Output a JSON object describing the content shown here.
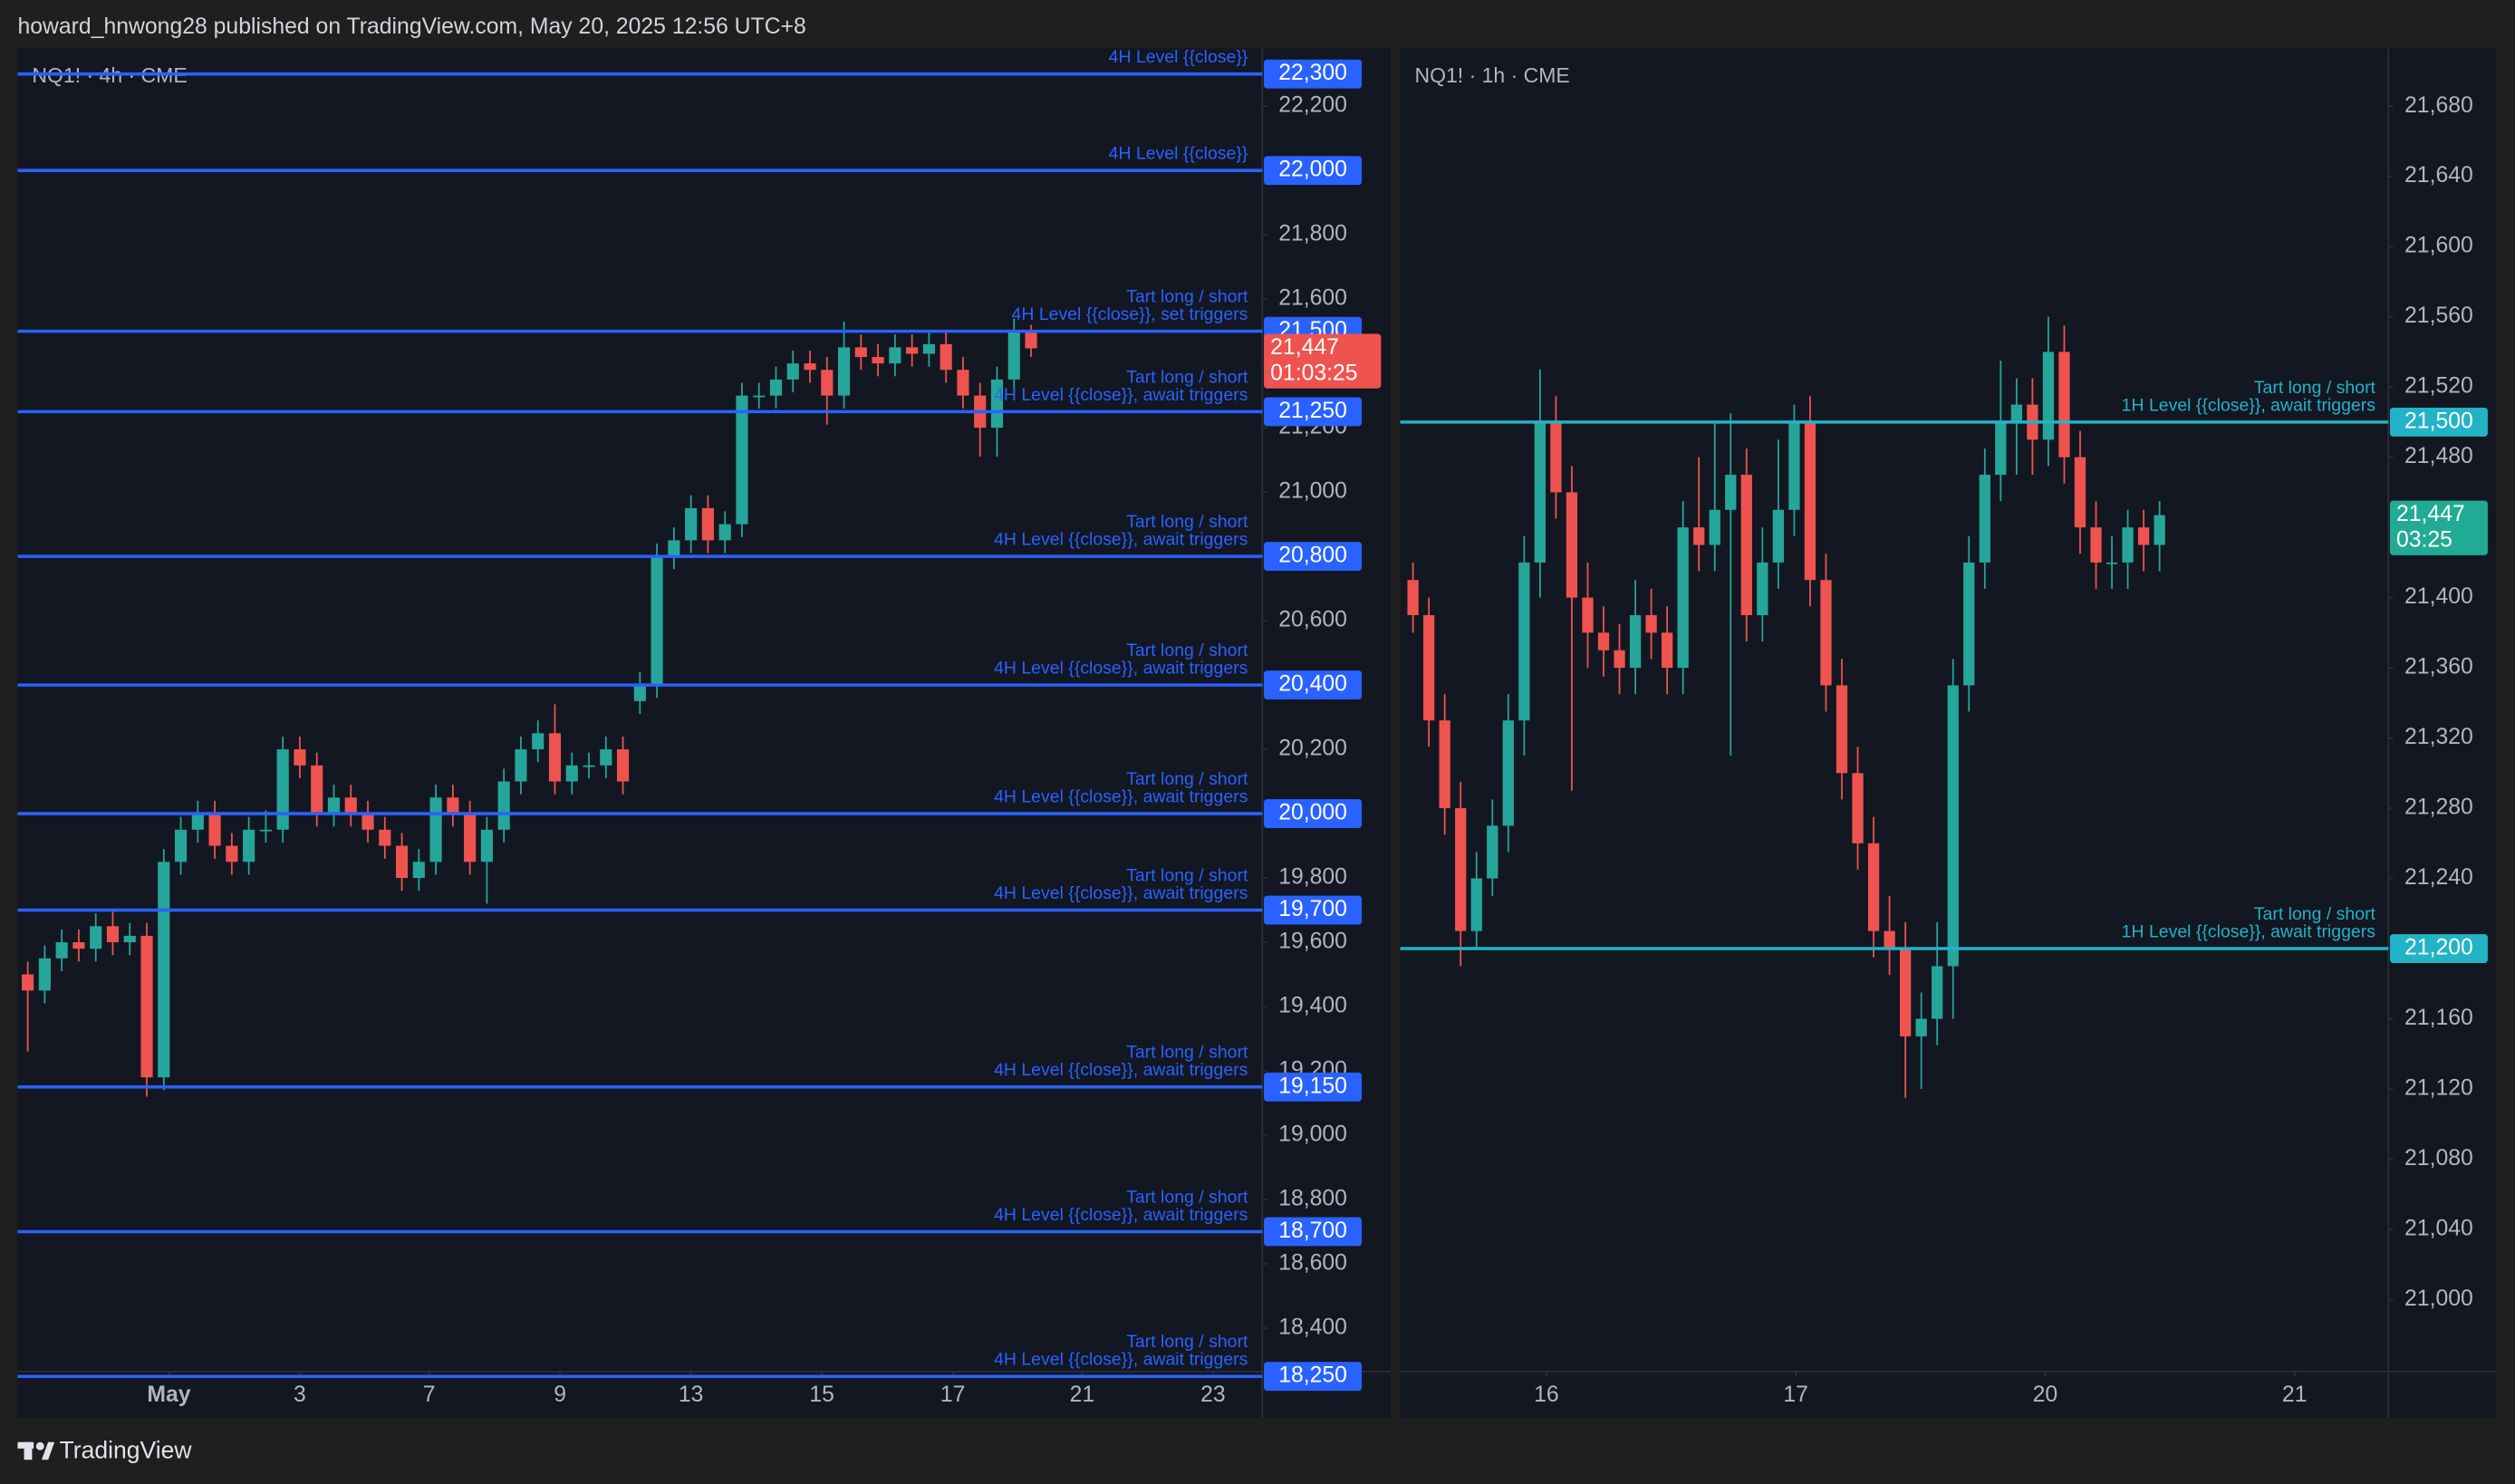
{
  "header": {
    "text": "howard_hnwong28 published on TradingView.com, May 20, 2025 12:56 UTC+8"
  },
  "footer": {
    "brand": "TradingView"
  },
  "chart_data": [
    {
      "type": "candlestick",
      "title": "NQ1! · 4h · CME",
      "up_color": "#26a69a",
      "down_color": "#ef5350",
      "level_color": "#2962ff",
      "ylim": [
        18265,
        22380
      ],
      "yticks": [
        {
          "value": 18400,
          "label": "18,400"
        },
        {
          "value": 18600,
          "label": "18,600"
        },
        {
          "value": 18800,
          "label": "18,800"
        },
        {
          "value": 19000,
          "label": "19,000"
        },
        {
          "value": 19200,
          "label": "19,200"
        },
        {
          "value": 19400,
          "label": "19,400"
        },
        {
          "value": 19600,
          "label": "19,600"
        },
        {
          "value": 19800,
          "label": "19,800"
        },
        {
          "value": 20000,
          "label": "20,000"
        },
        {
          "value": 20200,
          "label": "20,200"
        },
        {
          "value": 20400,
          "label": "20,400"
        },
        {
          "value": 20600,
          "label": "20,600"
        },
        {
          "value": 20800,
          "label": "20,800"
        },
        {
          "value": 21000,
          "label": "21,000"
        },
        {
          "value": 21200,
          "label": "21,200"
        },
        {
          "value": 21400,
          "label": "21,400"
        },
        {
          "value": 21600,
          "label": "21,600"
        },
        {
          "value": 21800,
          "label": "21,800"
        },
        {
          "value": 22000,
          "label": "22,000"
        },
        {
          "value": 22200,
          "label": "22,200"
        }
      ],
      "xlim": [
        -0.5,
        72.6
      ],
      "xticks": [
        {
          "value": 8.3,
          "label": "May"
        },
        {
          "value": 16,
          "label": "3"
        },
        {
          "value": 23.6,
          "label": "7"
        },
        {
          "value": 31.3,
          "label": "9"
        },
        {
          "value": 39,
          "label": "13"
        },
        {
          "value": 46.7,
          "label": "15"
        },
        {
          "value": 54.4,
          "label": "17"
        },
        {
          "value": 62,
          "label": "21"
        },
        {
          "value": 69.7,
          "label": "23"
        }
      ],
      "candles": {
        "open": [
          19500,
          19450,
          19550,
          19600,
          19580,
          19650,
          19600,
          19620,
          19180,
          19850,
          19950,
          20000,
          19900,
          19850,
          19950,
          19950,
          20200,
          20150,
          20000,
          20050,
          20000,
          19950,
          19900,
          19800,
          19850,
          20050,
          20000,
          19850,
          19950,
          20100,
          20200,
          20250,
          20100,
          20150,
          20150,
          20200,
          20350,
          20400,
          20800,
          20850,
          20950,
          20850,
          20900,
          21300,
          21300,
          21350,
          21400,
          21380,
          21300,
          21450,
          21420,
          21400,
          21450,
          21430,
          21460,
          21380,
          21300,
          21200,
          21350,
          21500
        ],
        "high": [
          19540,
          19590,
          19640,
          19640,
          19690,
          19700,
          19660,
          19660,
          19890,
          19990,
          20040,
          20040,
          19940,
          19990,
          20010,
          20240,
          20240,
          20190,
          20090,
          20090,
          20040,
          19990,
          19940,
          19890,
          20090,
          20090,
          20040,
          19990,
          20140,
          20240,
          20290,
          20340,
          20190,
          20190,
          20240,
          20240,
          20440,
          20840,
          20890,
          20990,
          20990,
          20940,
          21340,
          21340,
          21390,
          21440,
          21440,
          21420,
          21530,
          21490,
          21460,
          21490,
          21490,
          21500,
          21500,
          21420,
          21340,
          21390,
          21540,
          21520
        ],
        "low": [
          19260,
          19410,
          19510,
          19540,
          19540,
          19560,
          19560,
          19120,
          19140,
          19810,
          19910,
          19860,
          19810,
          19810,
          19910,
          19910,
          20110,
          19960,
          19960,
          19960,
          19910,
          19860,
          19760,
          19760,
          19810,
          19960,
          19810,
          19720,
          19910,
          20060,
          20160,
          20060,
          20060,
          20110,
          20110,
          20060,
          20310,
          20360,
          20760,
          20810,
          20810,
          20810,
          20860,
          21260,
          21260,
          21310,
          21340,
          21210,
          21260,
          21380,
          21360,
          21360,
          21390,
          21390,
          21340,
          21260,
          21110,
          21110,
          21310,
          21420
        ],
        "close": [
          19450,
          19550,
          19600,
          19580,
          19650,
          19600,
          19620,
          19180,
          19850,
          19950,
          20000,
          19900,
          19850,
          19950,
          19950,
          20200,
          20150,
          20000,
          20050,
          20000,
          19950,
          19900,
          19800,
          19850,
          20050,
          20000,
          19850,
          19950,
          20100,
          20200,
          20250,
          20100,
          20150,
          20150,
          20200,
          20100,
          20400,
          20800,
          20850,
          20950,
          20850,
          20900,
          21300,
          21300,
          21350,
          21400,
          21380,
          21300,
          21450,
          21420,
          21400,
          21450,
          21430,
          21460,
          21380,
          21300,
          21200,
          21350,
          21500,
          21447
        ]
      },
      "levels": [
        {
          "value": 22300,
          "label": "22,300",
          "text": [
            "4H Level {{close}}"
          ]
        },
        {
          "value": 22000,
          "label": "22,000",
          "text": [
            "4H Level {{close}}"
          ]
        },
        {
          "value": 21500,
          "label": "21,500",
          "text": [
            "Tart long / short",
            "4H Level {{close}}, set triggers"
          ]
        },
        {
          "value": 21250,
          "label": "21,250",
          "text": [
            "Tart long / short",
            "4H Level {{close}}, await triggers"
          ]
        },
        {
          "value": 20800,
          "label": "20,800",
          "text": [
            "Tart long / short",
            "4H Level {{close}}, await triggers"
          ]
        },
        {
          "value": 20400,
          "label": "20,400",
          "text": [
            "Tart long / short",
            "4H Level {{close}}, await triggers"
          ]
        },
        {
          "value": 20000,
          "label": "20,000",
          "text": [
            "Tart long / short",
            "4H Level {{close}}, await triggers"
          ]
        },
        {
          "value": 19700,
          "label": "19,700",
          "text": [
            "Tart long / short",
            "4H Level {{close}}, await triggers"
          ]
        },
        {
          "value": 19150,
          "label": "19,150",
          "text": [
            "Tart long / short",
            "4H Level {{close}}, await triggers"
          ]
        },
        {
          "value": 18700,
          "label": "18,700",
          "text": [
            "Tart long / short",
            "4H Level {{close}}, await triggers"
          ]
        },
        {
          "value": 18250,
          "label": "18,250",
          "text": [
            "Tart long / short",
            "4H Level {{close}}, await triggers"
          ]
        }
      ],
      "last_price": {
        "value": 21447,
        "label": "21,447",
        "countdown": "01:03:25",
        "color": "#ef5350"
      }
    },
    {
      "type": "candlestick",
      "title": "NQ1! · 1h · CME",
      "up_color": "#26a69a",
      "down_color": "#ef5350",
      "level_color": "#22b3c6",
      "ylim": [
        20959,
        21713
      ],
      "yticks": [
        {
          "value": 21000,
          "label": "21,000"
        },
        {
          "value": 21040,
          "label": "21,040"
        },
        {
          "value": 21080,
          "label": "21,080"
        },
        {
          "value": 21120,
          "label": "21,120"
        },
        {
          "value": 21160,
          "label": "21,160"
        },
        {
          "value": 21200,
          "label": "21,200"
        },
        {
          "value": 21240,
          "label": "21,240"
        },
        {
          "value": 21280,
          "label": "21,280"
        },
        {
          "value": 21320,
          "label": "21,320"
        },
        {
          "value": 21360,
          "label": "21,360"
        },
        {
          "value": 21400,
          "label": "21,400"
        },
        {
          "value": 21440,
          "label": "21,440"
        },
        {
          "value": 21480,
          "label": "21,480"
        },
        {
          "value": 21520,
          "label": "21,520"
        },
        {
          "value": 21560,
          "label": "21,560"
        },
        {
          "value": 21600,
          "label": "21,600"
        },
        {
          "value": 21640,
          "label": "21,640"
        },
        {
          "value": 21680,
          "label": "21,680"
        }
      ],
      "xlim": [
        -0.7,
        61.4
      ],
      "xticks": [
        {
          "value": 8.4,
          "label": "16"
        },
        {
          "value": 24.1,
          "label": "17"
        },
        {
          "value": 39.8,
          "label": "20"
        },
        {
          "value": 55.5,
          "label": "21"
        }
      ],
      "candles": {
        "open": [
          21410,
          21390,
          21330,
          21280,
          21210,
          21240,
          21270,
          21330,
          21420,
          21500,
          21460,
          21400,
          21380,
          21370,
          21360,
          21390,
          21380,
          21360,
          21440,
          21430,
          21450,
          21470,
          21390,
          21420,
          21450,
          21500,
          21410,
          21350,
          21300,
          21260,
          21210,
          21200,
          21150,
          21160,
          21190,
          21350,
          21420,
          21470,
          21500,
          21510,
          21490,
          21540,
          21480,
          21440,
          21420,
          21420,
          21440,
          21430
        ],
        "high": [
          21420,
          21400,
          21345,
          21295,
          21255,
          21285,
          21345,
          21435,
          21530,
          21515,
          21475,
          21420,
          21395,
          21385,
          21410,
          21405,
          21395,
          21455,
          21480,
          21500,
          21505,
          21485,
          21440,
          21490,
          21510,
          21515,
          21425,
          21365,
          21315,
          21275,
          21230,
          21215,
          21175,
          21215,
          21365,
          21435,
          21485,
          21535,
          21525,
          21525,
          21560,
          21555,
          21495,
          21455,
          21435,
          21450,
          21450,
          21455
        ],
        "low": [
          21380,
          21315,
          21265,
          21190,
          21200,
          21230,
          21255,
          21310,
          21400,
          21445,
          21290,
          21360,
          21355,
          21345,
          21345,
          21365,
          21345,
          21345,
          21415,
          21415,
          21310,
          21375,
          21375,
          21405,
          21435,
          21395,
          21335,
          21285,
          21245,
          21195,
          21185,
          21115,
          21120,
          21145,
          21160,
          21335,
          21405,
          21455,
          21470,
          21470,
          21475,
          21465,
          21425,
          21405,
          21405,
          21405,
          21415,
          21415
        ],
        "close": [
          21390,
          21330,
          21280,
          21210,
          21240,
          21270,
          21330,
          21420,
          21500,
          21460,
          21400,
          21380,
          21370,
          21360,
          21390,
          21380,
          21360,
          21440,
          21430,
          21450,
          21470,
          21390,
          21420,
          21450,
          21500,
          21410,
          21350,
          21300,
          21260,
          21210,
          21200,
          21150,
          21160,
          21190,
          21350,
          21420,
          21470,
          21500,
          21510,
          21490,
          21540,
          21480,
          21440,
          21420,
          21420,
          21440,
          21430,
          21447
        ]
      },
      "levels": [
        {
          "value": 21500,
          "label": "21,500",
          "text": [
            "Tart long / short",
            "1H Level {{close}}, await triggers"
          ]
        },
        {
          "value": 21200,
          "label": "21,200",
          "text": [
            "Tart long / short",
            "1H Level {{close}}, await triggers"
          ]
        }
      ],
      "last_price": {
        "value": 21447,
        "label": "21,447",
        "countdown": "03:25",
        "color": "#22ab94"
      }
    }
  ]
}
